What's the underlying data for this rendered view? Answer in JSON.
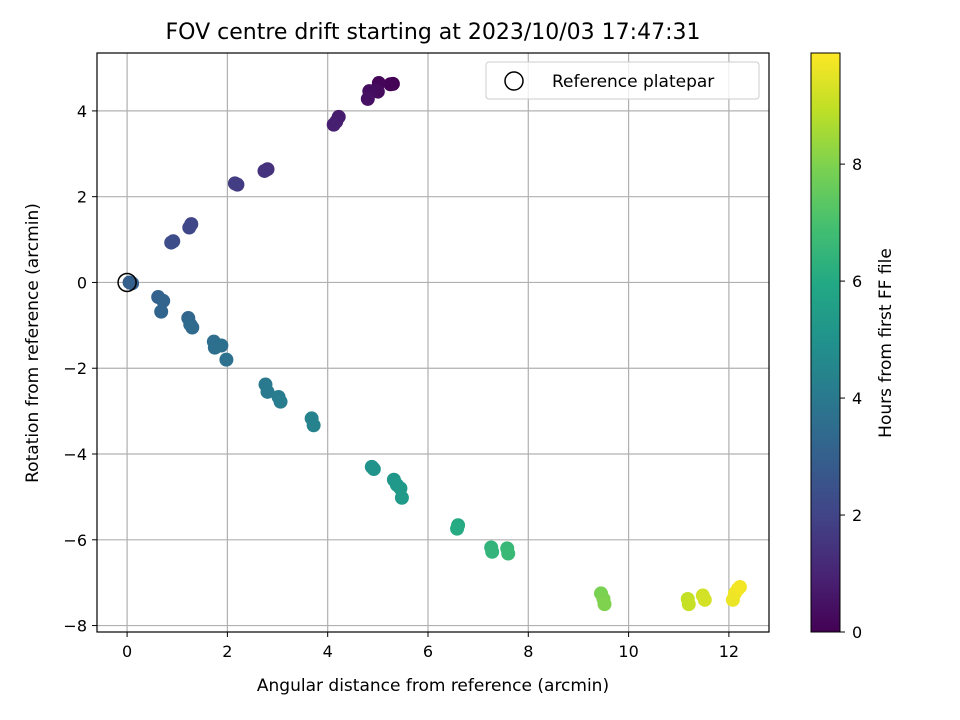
{
  "chart_data": {
    "type": "scatter",
    "title": "FOV centre drift starting at 2023/10/03 17:47:31",
    "xlabel": "Angular distance from reference (arcmin)",
    "ylabel": "Rotation from reference (arcmin)",
    "xlim": [
      -0.6,
      12.8
    ],
    "ylim": [
      -8.15,
      5.35
    ],
    "xticks": [
      0,
      2,
      4,
      6,
      8,
      10,
      12
    ],
    "yticks": [
      -8,
      -6,
      -4,
      -2,
      0,
      2,
      4
    ],
    "grid": true,
    "legend": {
      "position": "top-right",
      "entries": [
        "Reference platepar"
      ]
    },
    "reference_point": {
      "name": "Reference platepar",
      "x": 0,
      "y": 0
    },
    "colorbar": {
      "label": "Hours from first FF file",
      "colormap": "viridis",
      "range": [
        0,
        9.9
      ],
      "ticks": [
        0,
        2,
        4,
        6,
        8
      ]
    },
    "points": [
      {
        "x": 5.3,
        "y": 4.63,
        "hours": 0.0
      },
      {
        "x": 5.25,
        "y": 4.62,
        "hours": 0.05
      },
      {
        "x": 5.02,
        "y": 4.65,
        "hours": 0.15
      },
      {
        "x": 4.95,
        "y": 4.48,
        "hours": 0.25
      },
      {
        "x": 5.0,
        "y": 4.45,
        "hours": 0.3
      },
      {
        "x": 4.83,
        "y": 4.46,
        "hours": 0.35
      },
      {
        "x": 4.8,
        "y": 4.28,
        "hours": 0.45
      },
      {
        "x": 4.22,
        "y": 3.86,
        "hours": 0.75
      },
      {
        "x": 4.17,
        "y": 3.75,
        "hours": 0.8
      },
      {
        "x": 4.12,
        "y": 3.68,
        "hours": 0.85
      },
      {
        "x": 2.8,
        "y": 2.64,
        "hours": 1.4
      },
      {
        "x": 2.74,
        "y": 2.6,
        "hours": 1.45
      },
      {
        "x": 2.2,
        "y": 2.28,
        "hours": 1.7
      },
      {
        "x": 2.15,
        "y": 2.31,
        "hours": 1.75
      },
      {
        "x": 1.28,
        "y": 1.36,
        "hours": 2.05
      },
      {
        "x": 1.24,
        "y": 1.28,
        "hours": 2.1
      },
      {
        "x": 0.92,
        "y": 0.96,
        "hours": 2.25
      },
      {
        "x": 0.88,
        "y": 0.93,
        "hours": 2.3
      },
      {
        "x": 0.05,
        "y": 0.0,
        "hours": 2.95
      },
      {
        "x": 0.1,
        "y": -0.02,
        "hours": 3.0
      },
      {
        "x": 0.62,
        "y": -0.34,
        "hours": 3.1
      },
      {
        "x": 0.72,
        "y": -0.43,
        "hours": 3.15
      },
      {
        "x": 0.68,
        "y": -0.68,
        "hours": 3.2
      },
      {
        "x": 1.22,
        "y": -0.83,
        "hours": 3.3
      },
      {
        "x": 1.26,
        "y": -0.98,
        "hours": 3.35
      },
      {
        "x": 1.3,
        "y": -1.05,
        "hours": 3.4
      },
      {
        "x": 1.73,
        "y": -1.38,
        "hours": 3.55
      },
      {
        "x": 1.75,
        "y": -1.52,
        "hours": 3.6
      },
      {
        "x": 1.88,
        "y": -1.47,
        "hours": 3.65
      },
      {
        "x": 1.98,
        "y": -1.8,
        "hours": 3.7
      },
      {
        "x": 2.76,
        "y": -2.38,
        "hours": 4.0
      },
      {
        "x": 2.8,
        "y": -2.55,
        "hours": 4.05
      },
      {
        "x": 3.02,
        "y": -2.67,
        "hours": 4.1
      },
      {
        "x": 3.06,
        "y": -2.78,
        "hours": 4.15
      },
      {
        "x": 3.68,
        "y": -3.17,
        "hours": 4.35
      },
      {
        "x": 3.72,
        "y": -3.33,
        "hours": 4.4
      },
      {
        "x": 4.88,
        "y": -4.3,
        "hours": 5.0
      },
      {
        "x": 4.92,
        "y": -4.35,
        "hours": 5.05
      },
      {
        "x": 5.32,
        "y": -4.6,
        "hours": 5.2
      },
      {
        "x": 5.38,
        "y": -4.72,
        "hours": 5.25
      },
      {
        "x": 5.45,
        "y": -4.8,
        "hours": 5.3
      },
      {
        "x": 5.48,
        "y": -5.02,
        "hours": 5.35
      },
      {
        "x": 6.6,
        "y": -5.66,
        "hours": 6.0
      },
      {
        "x": 6.58,
        "y": -5.74,
        "hours": 6.05
      },
      {
        "x": 7.26,
        "y": -6.18,
        "hours": 6.4
      },
      {
        "x": 7.28,
        "y": -6.28,
        "hours": 6.45
      },
      {
        "x": 7.58,
        "y": -6.2,
        "hours": 6.6
      },
      {
        "x": 7.6,
        "y": -6.32,
        "hours": 6.65
      },
      {
        "x": 9.45,
        "y": -7.25,
        "hours": 7.9
      },
      {
        "x": 9.5,
        "y": -7.38,
        "hours": 7.95
      },
      {
        "x": 9.52,
        "y": -7.5,
        "hours": 8.0
      },
      {
        "x": 11.18,
        "y": -7.38,
        "hours": 9.0
      },
      {
        "x": 11.2,
        "y": -7.5,
        "hours": 9.05
      },
      {
        "x": 11.48,
        "y": -7.3,
        "hours": 9.2
      },
      {
        "x": 11.52,
        "y": -7.4,
        "hours": 9.25
      },
      {
        "x": 12.08,
        "y": -7.4,
        "hours": 9.6
      },
      {
        "x": 12.12,
        "y": -7.25,
        "hours": 9.65
      },
      {
        "x": 12.18,
        "y": -7.15,
        "hours": 9.7
      },
      {
        "x": 12.22,
        "y": -7.1,
        "hours": 9.75
      }
    ]
  }
}
